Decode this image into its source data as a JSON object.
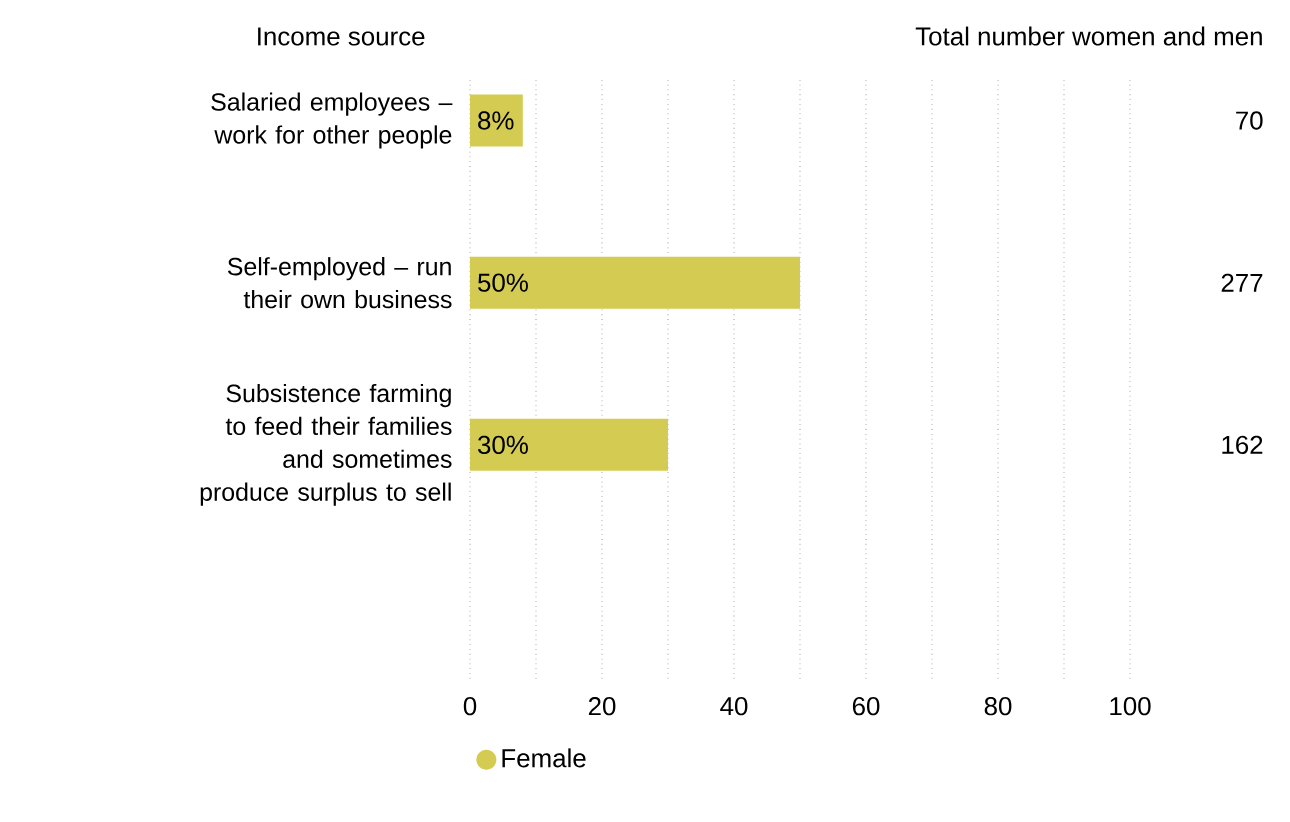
{
  "chart_data": {
    "type": "bar",
    "orientation": "horizontal",
    "ylabel": "Income source",
    "categories": [
      "Salaried employees – work for other people",
      "Self-employed – run their own business",
      "Subsistence farming to feed their families and sometimes produce surplus to sell"
    ],
    "series": [
      {
        "name": "Female",
        "color": "#d4cb52",
        "values": [
          8,
          50,
          30
        ],
        "value_labels": [
          "8%",
          "50%",
          "30%"
        ]
      }
    ],
    "xlim": [
      0,
      100
    ],
    "xticks": [
      0,
      {
        "value": 10,
        "label": null
      },
      20,
      {
        "value": 30,
        "label": null
      },
      40,
      {
        "value": 50,
        "label": null
      },
      60,
      {
        "value": 70,
        "label": null
      },
      80,
      {
        "value": 90,
        "label": null
      },
      100
    ],
    "grid": "x",
    "legend": "bottom",
    "annotations": [
      "Total number women and men",
      "70",
      "277",
      "162"
    ]
  }
}
